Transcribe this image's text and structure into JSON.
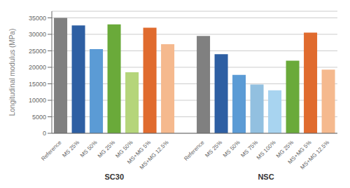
{
  "chart_data": {
    "type": "bar",
    "ylabel": "Longitudinal modulus (MPa)",
    "categories": [
      "Reference",
      "MS 25%",
      "MS 50%",
      "MG 25%",
      "MG 50%",
      "MS+MG 5%",
      "MS+MG 12.5%",
      "Reference",
      "MS 25%",
      "MS 50%",
      "MS 75%",
      "MS 100%",
      "MG 25%",
      "MS+MG 5%",
      "MS+MG 12.5%"
    ],
    "series": [
      {
        "name": "SC30",
        "values": [
          35000,
          32700,
          25500,
          33000,
          18500,
          32000,
          27000,
          null,
          null,
          null,
          null,
          null,
          null,
          null,
          null
        ]
      },
      {
        "name": "NSC",
        "values": [
          null,
          null,
          null,
          null,
          null,
          null,
          null,
          29500,
          24000,
          17700,
          14800,
          13000,
          22000,
          30500,
          19300
        ]
      }
    ],
    "colors": [
      "#808080",
      "#2e5fa3",
      "#5b9bd5",
      "#6aaa3a",
      "#b5d57a",
      "#e06b2e",
      "#f5b98e",
      "#808080",
      "#2e5fa3",
      "#5b9bd5",
      "#92c0e0",
      "#a8d4f0",
      "#6aaa3a",
      "#e06b2e",
      "#f5b98e"
    ],
    "ylim": [
      0,
      37000
    ],
    "yticks": [
      0,
      5000,
      10000,
      15000,
      20000,
      25000,
      30000,
      35000
    ],
    "grid": true
  }
}
